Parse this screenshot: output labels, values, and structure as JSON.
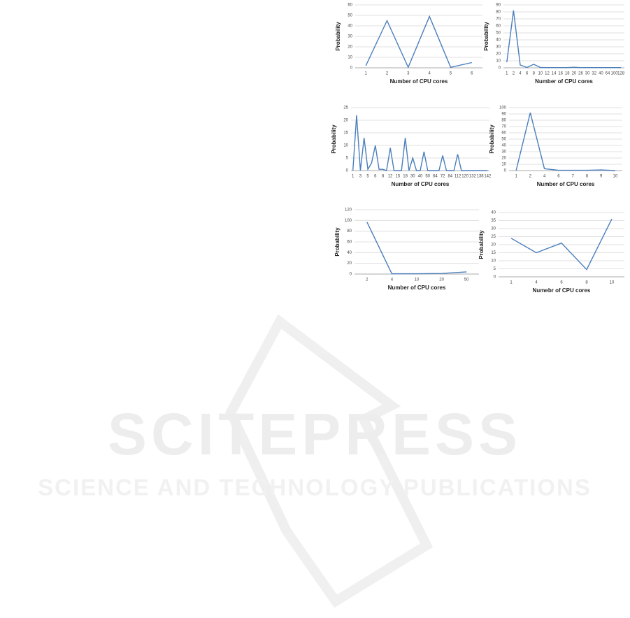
{
  "chart_data": [
    {
      "type": "line",
      "x_label": "Number of CPU cores",
      "y_label": "Probability",
      "color": "#4a7ebb",
      "grid": true,
      "categories": [
        "1",
        "2",
        "3",
        "4",
        "5",
        "6"
      ],
      "values": [
        2,
        45,
        0.5,
        49,
        0.5,
        5
      ],
      "ylim": [
        0,
        60
      ],
      "yticks": [
        0,
        10,
        20,
        30,
        40,
        50,
        60
      ]
    },
    {
      "type": "line",
      "x_label": "Number of CPU cores",
      "y_label": "Probability",
      "color": "#4a7ebb",
      "grid": true,
      "categories": [
        "1",
        "2",
        "4",
        "6",
        "8",
        "10",
        "12",
        "14",
        "16",
        "18",
        "20",
        "26",
        "30",
        "32",
        "40",
        "64",
        "100",
        "128"
      ],
      "values": [
        8,
        82,
        4,
        0.5,
        5,
        0.5,
        0.3,
        0.3,
        0.3,
        0.3,
        0.8,
        0.3,
        0.3,
        0.3,
        0.3,
        0.3,
        0.3,
        0.3
      ],
      "ylim": [
        0,
        90
      ],
      "yticks": [
        0,
        10,
        20,
        30,
        40,
        50,
        60,
        70,
        80,
        90
      ]
    },
    {
      "type": "line",
      "x_label": "Number of CPU cores",
      "y_label": "Probability",
      "color": "#4a7ebb",
      "grid": true,
      "categories": [
        "1",
        null,
        "3",
        null,
        "5",
        null,
        "6",
        null,
        "8",
        null,
        "12",
        null,
        "15",
        null,
        "18",
        null,
        "30",
        null,
        "40",
        null,
        "50",
        null,
        "64",
        null,
        "72",
        null,
        "84",
        null,
        "112",
        null,
        "120",
        null,
        "132",
        null,
        "138",
        null,
        "142"
      ],
      "values": [
        0,
        22,
        0,
        13,
        0.5,
        3,
        10,
        0.5,
        0.5,
        0,
        9,
        0,
        0,
        0,
        13,
        0,
        5,
        0,
        0,
        7.5,
        0,
        0,
        0,
        0,
        6,
        0,
        0,
        0,
        6.5,
        0,
        0,
        0,
        0,
        0,
        0,
        0,
        0
      ],
      "ylim": [
        0,
        25
      ],
      "yticks": [
        0,
        5,
        10,
        15,
        20,
        25
      ]
    },
    {
      "type": "line",
      "x_label": "Number of CPU cores",
      "y_label": "Probability",
      "color": "#4a7ebb",
      "grid": true,
      "categories": [
        "1",
        "2",
        "4",
        "6",
        "7",
        "8",
        "9",
        "10"
      ],
      "values": [
        0,
        92,
        3,
        0.5,
        0.5,
        0.5,
        1,
        0
      ],
      "ylim": [
        0,
        100
      ],
      "yticks": [
        0,
        10,
        20,
        30,
        40,
        50,
        60,
        70,
        80,
        90,
        100
      ]
    },
    {
      "type": "line",
      "x_label": "Number of CPU cores",
      "y_label": "Probability",
      "color": "#4a7ebb",
      "grid": true,
      "categories": [
        "2",
        "4",
        "10",
        "20",
        "50"
      ],
      "values": [
        97,
        0.5,
        0.5,
        1,
        4
      ],
      "ylim": [
        0,
        120
      ],
      "yticks": [
        0,
        20,
        40,
        60,
        80,
        100,
        120
      ]
    },
    {
      "type": "line",
      "x_label": "Numebr of CPU cores",
      "y_label": "Probability",
      "color": "#4a7ebb",
      "grid": true,
      "categories": [
        "1",
        "4",
        "6",
        "8",
        "10"
      ],
      "values": [
        24,
        15,
        21,
        4.5,
        36
      ],
      "ylim": [
        0,
        40
      ],
      "yticks": [
        0,
        5,
        10,
        15,
        20,
        25,
        30,
        35,
        40
      ]
    }
  ],
  "watermark": {
    "title": "SCITEPRESS",
    "subtitle": "SCIENCE AND TECHNOLOGY PUBLICATIONS"
  }
}
